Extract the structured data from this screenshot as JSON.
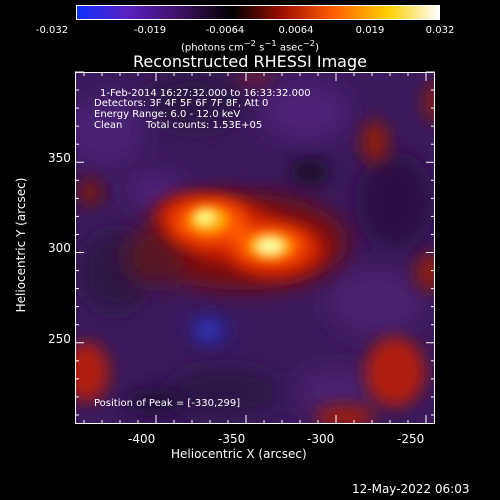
{
  "colorbar": {
    "ticks": [
      "-0.032",
      "-0.019",
      "-0.0064",
      "0.0064",
      "0.019",
      "0.032"
    ],
    "unit_html": "(photons cm<sup>&minus;2</sup> s<sup>&minus;1</sup> asec<sup>&minus;2</sup>)",
    "colors": [
      "#1030ff",
      "#5a20c0",
      "#3a1060",
      "#000000",
      "#a01000",
      "#ff6000",
      "#ffd000",
      "#ffffff"
    ]
  },
  "title": "Reconstructed RHESSI Image",
  "info": {
    "time": "1-Feb-2014 16:27:32.000 to 16:33:32.000",
    "detectors": "Detectors: 3F 4F 5F 6F 7F 8F, Att 0",
    "energy": "Energy Range: 6.0 - 12.0 keV",
    "clean_label": "Clean",
    "total_counts": "Total counts: 1.53E+05",
    "peak": "Position of Peak = [-330,299]"
  },
  "axes": {
    "xlabel": "Heliocentric X (arcsec)",
    "ylabel": "Heliocentric Y (arcsec)",
    "xlim": [
      -445,
      -245
    ],
    "ylim": [
      205,
      400
    ],
    "xticks": [
      -400,
      -350,
      -300,
      -250
    ],
    "yticks": [
      250,
      300,
      350
    ]
  },
  "footer": "12-May-2022 06:03"
}
